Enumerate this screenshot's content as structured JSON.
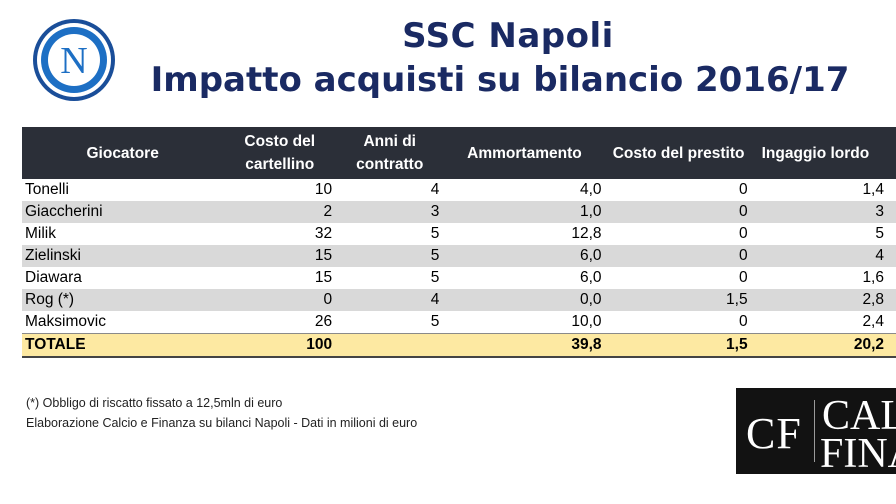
{
  "header": {
    "title": "SSC Napoli",
    "subtitle": "Impatto acquisti su bilancio 2016/17",
    "logo_letter": "N"
  },
  "table": {
    "columns": [
      "Giocatore",
      "Costo del cartellino",
      "Anni di contratto",
      "Ammortamento",
      "Costo del prestito",
      "Ingaggio lordo"
    ],
    "col_lines": [
      [
        "Giocatore"
      ],
      [
        "Costo del",
        "cartellino"
      ],
      [
        "Anni di",
        "contratto"
      ],
      [
        "Ammortamento"
      ],
      [
        "Costo del prestito"
      ],
      [
        "Ingaggio lordo"
      ]
    ],
    "rows": [
      [
        "Tonelli",
        "10",
        "4",
        "4,0",
        "0",
        "1,4"
      ],
      [
        "Giaccherini",
        "2",
        "3",
        "1,0",
        "0",
        "3"
      ],
      [
        "Milik",
        "32",
        "5",
        "12,8",
        "0",
        "5"
      ],
      [
        "Zielinski",
        "15",
        "5",
        "6,0",
        "0",
        "4"
      ],
      [
        "Diawara",
        "15",
        "5",
        "6,0",
        "0",
        "1,6"
      ],
      [
        "Rog (*)",
        "0",
        "4",
        "0,0",
        "1,5",
        "2,8"
      ],
      [
        "Maksimovic",
        "26",
        "5",
        "10,0",
        "0",
        "2,4"
      ]
    ],
    "total": [
      "TOTALE",
      "100",
      "",
      "39,8",
      "1,5",
      "20,2"
    ]
  },
  "notes": {
    "line1": "(*) Obbligo di riscatto fissato a 12,5mln di euro",
    "line2": "Elaborazione Calcio e Finanza su bilanci Napoli - Dati in milioni di euro"
  },
  "brand": {
    "mark": "CF",
    "word1": "CALCIO",
    "word2": "FINANZA"
  },
  "colors": {
    "title": "#1a2a63",
    "header_bg": "#2b2f38",
    "total_bg": "#fde9a2",
    "logo_blue": "#1d6fc4"
  }
}
